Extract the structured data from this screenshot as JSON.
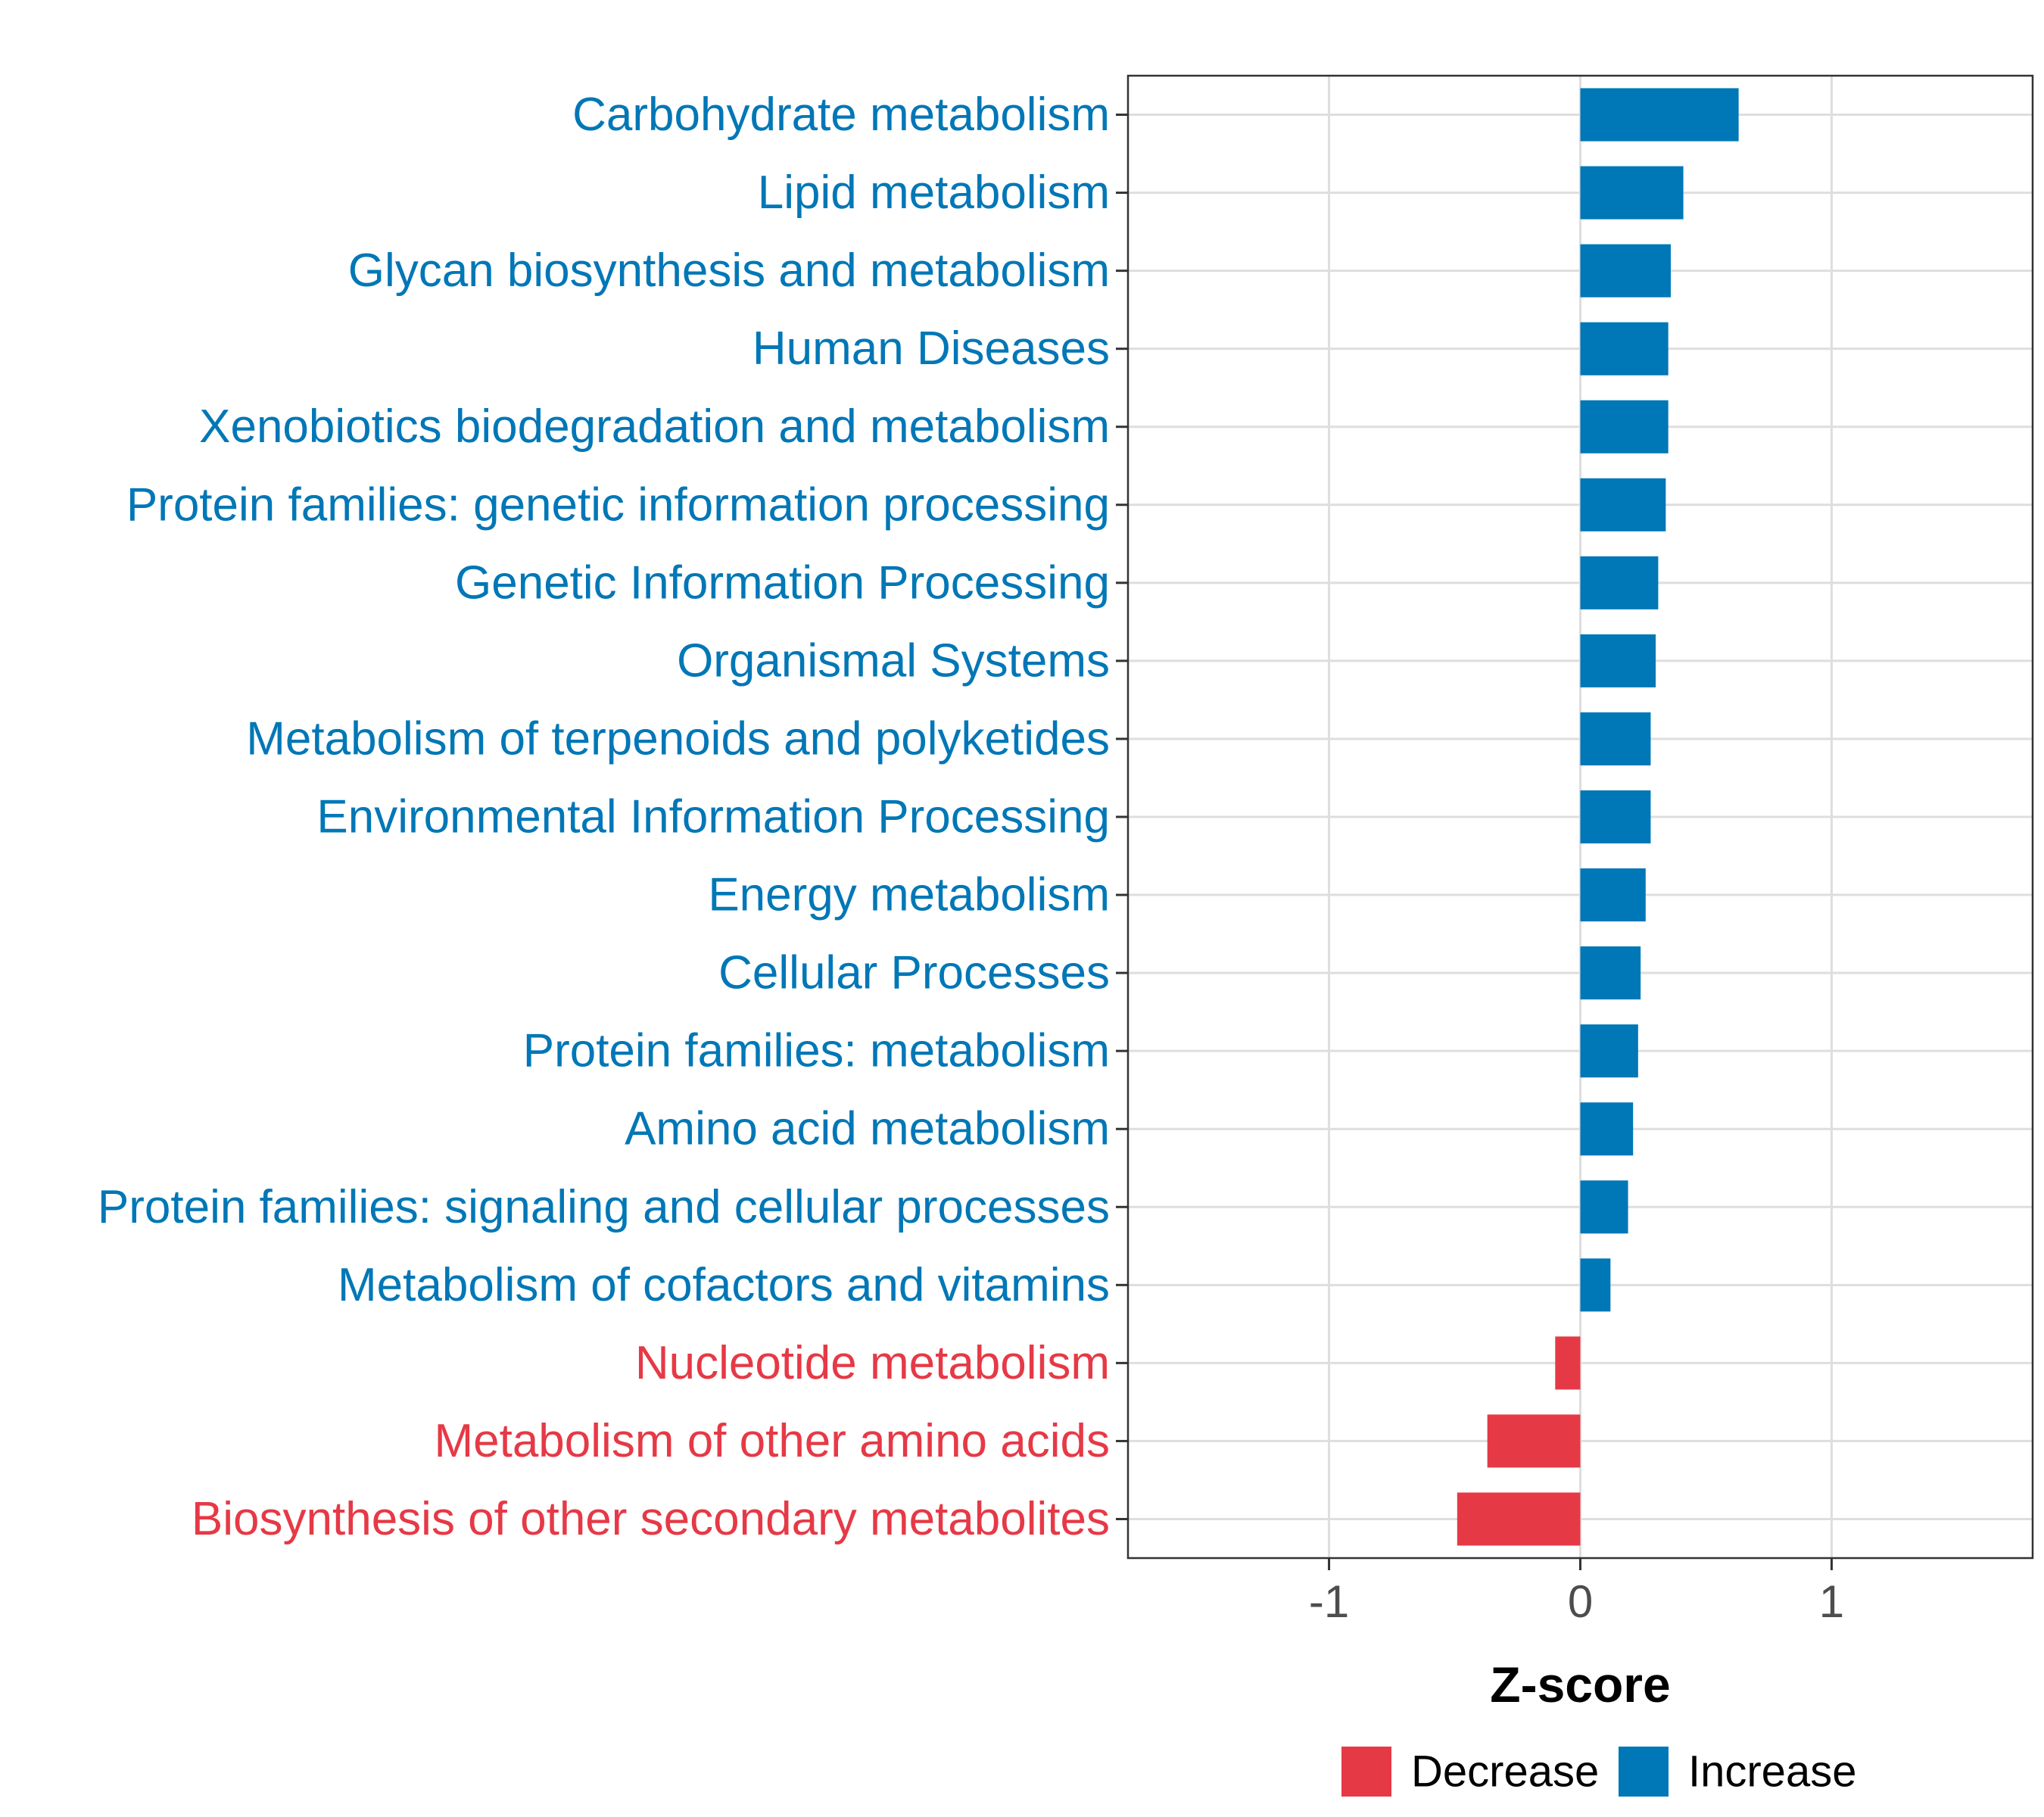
{
  "chart_data": {
    "type": "bar",
    "orientation": "horizontal",
    "title": "",
    "xlabel": "Z-score",
    "ylabel": "",
    "xlim": [
      -1.8,
      1.8
    ],
    "xticks": [
      "-1",
      "0",
      "1"
    ],
    "xtick_values": [
      -1,
      0,
      1
    ],
    "grid": true,
    "legend_position": "bottom",
    "colors": {
      "Decrease": "#e63946",
      "Increase": "#0077b6"
    },
    "legend": [
      {
        "name": "Decrease",
        "color": "#e63946"
      },
      {
        "name": "Increase",
        "color": "#0077b6"
      }
    ],
    "categories": [
      "Carbohydrate metabolism",
      "Lipid metabolism",
      "Glycan biosynthesis and metabolism",
      "Human Diseases",
      "Xenobiotics biodegradation and metabolism",
      "Protein families: genetic information processing",
      "Genetic Information Processing",
      "Organismal Systems",
      "Metabolism of terpenoids and polyketides",
      "Environmental Information Processing",
      "Energy metabolism",
      "Cellular Processes",
      "Protein families: metabolism",
      "Amino acid metabolism",
      "Protein families: signaling and cellular processes",
      "Metabolism of cofactors and vitamins",
      "Nucleotide metabolism",
      "Metabolism of other amino acids",
      "Biosynthesis of other secondary metabolites"
    ],
    "values": [
      0.63,
      0.41,
      0.36,
      0.35,
      0.35,
      0.34,
      0.31,
      0.3,
      0.28,
      0.28,
      0.26,
      0.24,
      0.23,
      0.21,
      0.19,
      0.12,
      -0.1,
      -0.37,
      -0.49
    ],
    "groups": [
      "Increase",
      "Increase",
      "Increase",
      "Increase",
      "Increase",
      "Increase",
      "Increase",
      "Increase",
      "Increase",
      "Increase",
      "Increase",
      "Increase",
      "Increase",
      "Increase",
      "Increase",
      "Increase",
      "Decrease",
      "Decrease",
      "Decrease"
    ]
  }
}
